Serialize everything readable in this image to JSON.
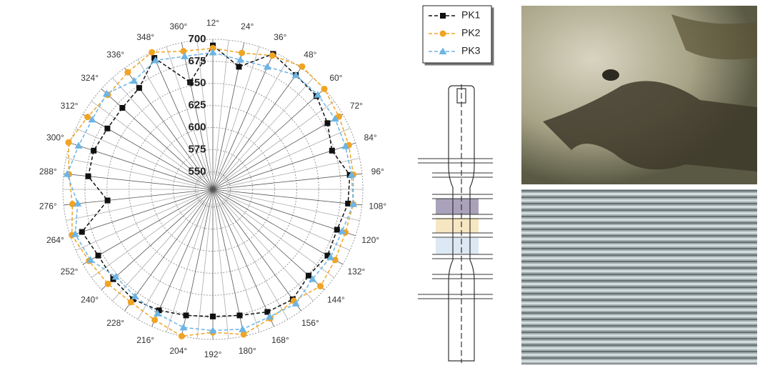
{
  "chart_data": {
    "type": "polar",
    "categories": [
      "12°",
      "24°",
      "36°",
      "48°",
      "60°",
      "72°",
      "84°",
      "96°",
      "108°",
      "120°",
      "132°",
      "144°",
      "156°",
      "168°",
      "180°",
      "192°",
      "204°",
      "216°",
      "228°",
      "240°",
      "252°",
      "264°",
      "276°",
      "288°",
      "300°",
      "312°",
      "324°",
      "336°",
      "348°",
      "360°"
    ],
    "series": [
      {
        "name": "PK1",
        "color": "#111111",
        "marker": "square",
        "values": [
          693,
          672,
          698,
          690,
          688,
          680,
          672,
          686,
          684,
          678,
          680,
          676,
          684,
          682,
          676,
          674,
          676,
          680,
          684,
          682,
          680,
          686,
          650,
          672,
          672,
          668,
          668,
          672,
          693,
          654
        ]
      },
      {
        "name": "PK2",
        "color": "#f0a424",
        "marker": "circle",
        "values": [
          690,
          688,
          696,
          702,
          700,
          695,
          692,
          690,
          690,
          688,
          690,
          694,
          686,
          690,
          698,
          692,
          700,
          692,
          688,
          690,
          692,
          698,
          690,
          694,
          702,
          694,
          690,
          694,
          700,
          690
        ]
      },
      {
        "name": "PK3",
        "color": "#6cb4e4",
        "marker": "triangle",
        "values": [
          685,
          680,
          682,
          690,
          690,
          690,
          688,
          688,
          690,
          684,
          684,
          682,
          690,
          688,
          692,
          690,
          690,
          684,
          680,
          678,
          690,
          694,
          684,
          696,
          690,
          688,
          692,
          682,
          690,
          684
        ]
      }
    ],
    "rlim": [
      530,
      700
    ],
    "rticks": [
      550,
      575,
      600,
      625,
      650,
      675,
      700
    ],
    "grid": true,
    "legend": "right"
  }
}
